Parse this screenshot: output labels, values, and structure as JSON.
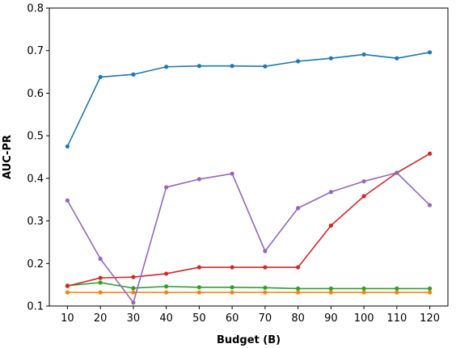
{
  "chart_data": {
    "type": "line",
    "xlabel": "Budget (B)",
    "ylabel": "AUC-PR",
    "x": [
      10,
      20,
      30,
      40,
      50,
      60,
      70,
      80,
      90,
      100,
      110,
      120
    ],
    "xlim": [
      4.5,
      125.5
    ],
    "ylim": [
      0.1,
      0.8
    ],
    "yticks": [
      0.1,
      0.2,
      0.3,
      0.4,
      0.5,
      0.6,
      0.7,
      0.8
    ],
    "ytick_labels": [
      "0.1",
      "0.2",
      "0.3",
      "0.4",
      "0.5",
      "0.6",
      "0.7",
      "0.8"
    ],
    "xtick_labels": [
      "10",
      "20",
      "30",
      "40",
      "50",
      "60",
      "70",
      "80",
      "90",
      "100",
      "110",
      "120"
    ],
    "grid": false,
    "legend": "none",
    "series": [
      {
        "color": "#1f77b4",
        "values": [
          0.475,
          0.638,
          0.644,
          0.662,
          0.664,
          0.664,
          0.663,
          0.675,
          0.682,
          0.691,
          0.682,
          0.696
        ]
      },
      {
        "color": "#ff7f0e",
        "values": [
          0.132,
          0.132,
          0.132,
          0.132,
          0.132,
          0.132,
          0.132,
          0.132,
          0.132,
          0.132,
          0.132,
          0.132
        ]
      },
      {
        "color": "#2ca02c",
        "values": [
          0.148,
          0.155,
          0.142,
          0.146,
          0.144,
          0.144,
          0.143,
          0.141,
          0.141,
          0.141,
          0.141,
          0.141
        ]
      },
      {
        "color": "#d62728",
        "values": [
          0.147,
          0.166,
          0.168,
          0.176,
          0.191,
          0.191,
          0.191,
          0.191,
          0.289,
          0.358,
          0.413,
          0.458
        ]
      },
      {
        "color": "#9467bd",
        "values": [
          0.348,
          0.211,
          0.108,
          0.379,
          0.398,
          0.411,
          0.229,
          0.33,
          0.368,
          0.393,
          0.413,
          0.337
        ]
      }
    ]
  }
}
